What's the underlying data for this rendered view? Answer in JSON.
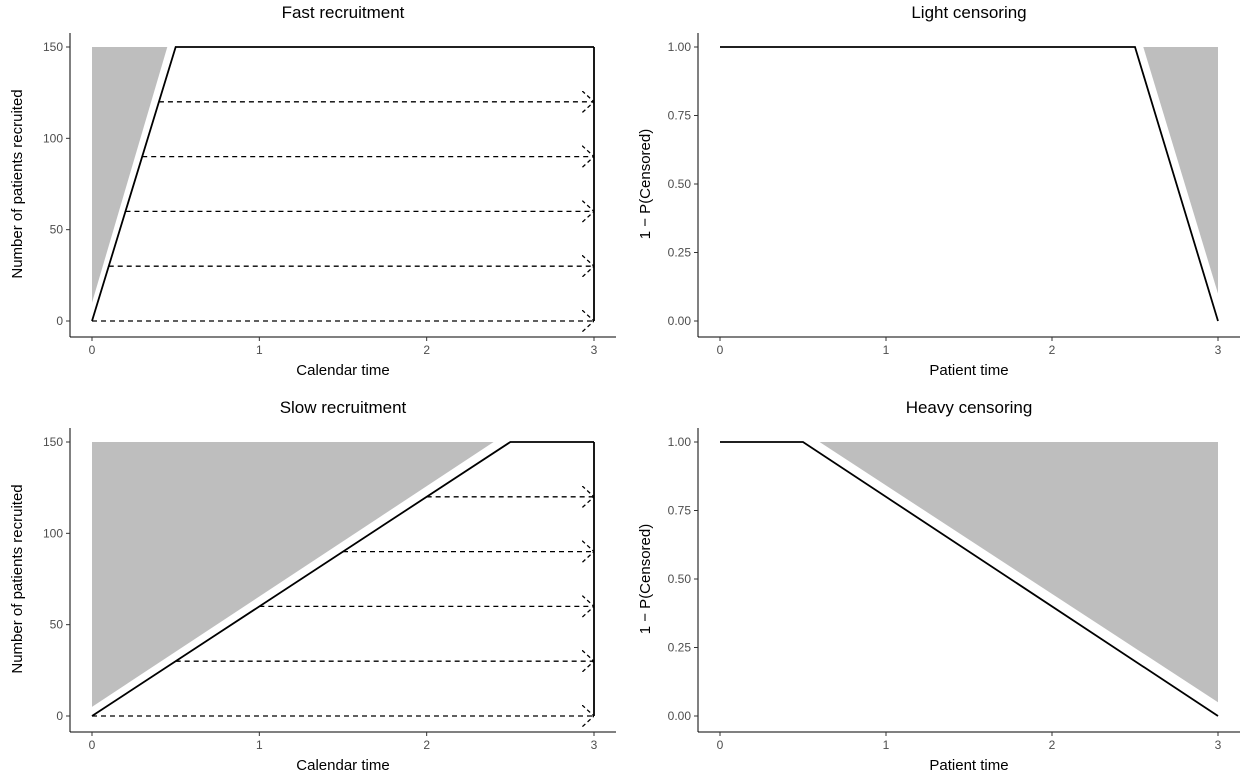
{
  "colors": {
    "shade": "#bebebe",
    "line": "#000000",
    "tick_text": "#4d4d4d"
  },
  "chart_data": [
    {
      "type": "line",
      "title": "Fast recruitment",
      "xlabel": "Calendar time",
      "ylabel": "Number of patients recruited",
      "xlim": [
        0,
        3
      ],
      "ylim": [
        0,
        150
      ],
      "x_ticks": [
        0,
        1,
        2,
        3
      ],
      "y_ticks": [
        0,
        50,
        100,
        150
      ],
      "y_tick_labels": [
        "0",
        "50",
        "100",
        "150"
      ],
      "grid": false,
      "series": [
        {
          "x": [
            0,
            0.5,
            3
          ],
          "y": [
            0,
            150,
            150
          ]
        }
      ],
      "shaded_region": {
        "x": [
          0,
          0.45,
          0
        ],
        "y": [
          150,
          150,
          10
        ]
      },
      "vertical_line": {
        "x": 3,
        "y": [
          0,
          150
        ]
      },
      "arrows": [
        {
          "x_start": 0,
          "x_end": 3,
          "y": 0
        },
        {
          "x_start": 0.1,
          "x_end": 3,
          "y": 30
        },
        {
          "x_start": 0.2,
          "x_end": 3,
          "y": 60
        },
        {
          "x_start": 0.3,
          "x_end": 3,
          "y": 90
        },
        {
          "x_start": 0.4,
          "x_end": 3,
          "y": 120
        }
      ]
    },
    {
      "type": "line",
      "title": "Light censoring",
      "xlabel": "Patient time",
      "ylabel": "1 − P(Censored)",
      "xlim": [
        0,
        3
      ],
      "ylim": [
        0,
        1
      ],
      "x_ticks": [
        0,
        1,
        2,
        3
      ],
      "y_ticks": [
        0,
        0.25,
        0.5,
        0.75,
        1
      ],
      "y_tick_labels": [
        "0.00",
        "0.25",
        "0.50",
        "0.75",
        "1.00"
      ],
      "grid": false,
      "series": [
        {
          "x": [
            0,
            2.5,
            3
          ],
          "y": [
            1,
            1,
            0
          ]
        }
      ],
      "shaded_region": {
        "x": [
          2.55,
          3,
          3
        ],
        "y": [
          1,
          1,
          0.1
        ]
      }
    },
    {
      "type": "line",
      "title": "Slow recruitment",
      "xlabel": "Calendar time",
      "ylabel": "Number of patients recruited",
      "xlim": [
        0,
        3
      ],
      "ylim": [
        0,
        150
      ],
      "x_ticks": [
        0,
        1,
        2,
        3
      ],
      "y_ticks": [
        0,
        50,
        100,
        150
      ],
      "y_tick_labels": [
        "0",
        "50",
        "100",
        "150"
      ],
      "grid": false,
      "series": [
        {
          "x": [
            0,
            2.5,
            3
          ],
          "y": [
            0,
            150,
            150
          ]
        }
      ],
      "shaded_region": {
        "x": [
          0,
          2.4,
          0
        ],
        "y": [
          150,
          150,
          5
        ]
      },
      "vertical_line": {
        "x": 3,
        "y": [
          0,
          150
        ]
      },
      "arrows": [
        {
          "x_start": 0,
          "x_end": 3,
          "y": 0
        },
        {
          "x_start": 0.5,
          "x_end": 3,
          "y": 30
        },
        {
          "x_start": 1,
          "x_end": 3,
          "y": 60
        },
        {
          "x_start": 1.5,
          "x_end": 3,
          "y": 90
        },
        {
          "x_start": 2,
          "x_end": 3,
          "y": 120
        }
      ]
    },
    {
      "type": "line",
      "title": "Heavy censoring",
      "xlabel": "Patient time",
      "ylabel": "1 − P(Censored)",
      "xlim": [
        0,
        3
      ],
      "ylim": [
        0,
        1
      ],
      "x_ticks": [
        0,
        1,
        2,
        3
      ],
      "y_ticks": [
        0,
        0.25,
        0.5,
        0.75,
        1
      ],
      "y_tick_labels": [
        "0.00",
        "0.25",
        "0.50",
        "0.75",
        "1.00"
      ],
      "grid": false,
      "series": [
        {
          "x": [
            0,
            0.5,
            3
          ],
          "y": [
            1,
            1,
            0
          ]
        }
      ],
      "shaded_region": {
        "x": [
          0.6,
          3,
          3
        ],
        "y": [
          1,
          1,
          0.05
        ]
      }
    }
  ]
}
